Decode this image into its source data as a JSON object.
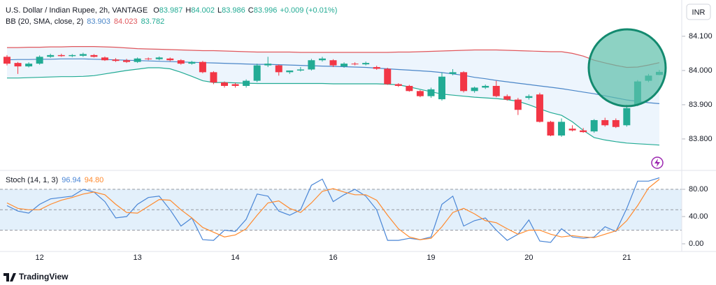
{
  "chart_data": [
    {
      "type": "candlestick",
      "title": "U.S. Dollar / Indian Rupee, 2h, VANTAGE",
      "ohlc": [
        {
          "label": "O",
          "value": "83.987"
        },
        {
          "label": "H",
          "value": "84.002"
        },
        {
          "label": "L",
          "value": "83.986"
        },
        {
          "label": "C",
          "value": "83.996"
        }
      ],
      "change": "+0.009 (+0.01%)",
      "currency": "INR",
      "categories": [
        null,
        null,
        null,
        "12",
        null,
        null,
        null,
        null,
        null,
        null,
        null,
        null,
        "13",
        null,
        null,
        null,
        null,
        null,
        null,
        null,
        null,
        "14",
        null,
        null,
        null,
        null,
        null,
        null,
        null,
        null,
        "16",
        null,
        null,
        null,
        null,
        null,
        null,
        null,
        null,
        "19",
        null,
        null,
        null,
        null,
        null,
        null,
        null,
        null,
        "20",
        null,
        null,
        null,
        null,
        null,
        null,
        null,
        null,
        "21",
        null,
        null,
        null
      ],
      "open": [
        84.04,
        84.022,
        84.012,
        84.02,
        84.04,
        84.045,
        84.042,
        84.043,
        84.045,
        84.038,
        84.032,
        84.03,
        84.025,
        84.035,
        84.033,
        84.035,
        84.03,
        84.02,
        84.025,
        83.995,
        83.965,
        83.96,
        83.955,
        83.97,
        84.015,
        84.015,
        83.995,
        84.0,
        84.003,
        84.03,
        84.03,
        84.012,
        84.02,
        84.018,
        84.01,
        84.005,
        83.96,
        83.955,
        83.94,
        83.925,
        83.916,
        83.99,
        83.995,
        83.94,
        83.95,
        83.955,
        83.925,
        83.915,
        83.92,
        83.93,
        83.85,
        83.81,
        83.83,
        83.825,
        83.822,
        83.855,
        83.855,
        83.84,
        83.9,
        83.97,
        83.987
      ],
      "high": [
        84.045,
        84.025,
        84.024,
        84.044,
        84.049,
        84.049,
        84.048,
        84.052,
        84.048,
        84.041,
        84.036,
        84.034,
        84.038,
        84.038,
        84.041,
        84.038,
        84.033,
        84.028,
        84.028,
        83.998,
        83.968,
        83.964,
        83.974,
        84.02,
        84.04,
        84.018,
        84.0,
        84.01,
        84.034,
        84.04,
        84.033,
        84.024,
        84.024,
        84.026,
        84.014,
        84.008,
        83.963,
        83.958,
        83.943,
        83.95,
        83.994,
        84.004,
        83.998,
        83.953,
        83.959,
        83.97,
        83.93,
        83.92,
        83.93,
        83.935,
        83.853,
        83.86,
        83.84,
        83.832,
        83.858,
        83.862,
        83.86,
        83.9,
        83.972,
        83.99,
        84.002
      ],
      "low": [
        84.015,
        83.99,
        84.009,
        84.017,
        84.037,
        84.04,
        84.039,
        84.04,
        84.038,
        84.028,
        84.025,
        84.022,
        84.022,
        84.03,
        84.03,
        84.027,
        84.017,
        84.017,
        83.992,
        83.96,
        83.95,
        83.95,
        83.95,
        83.966,
        84.01,
        83.985,
        83.99,
        83.997,
        84.0,
        84.026,
        84.01,
        84.008,
        84.015,
        84.015,
        84.002,
        83.958,
        83.952,
        83.938,
        83.922,
        83.92,
        83.912,
        83.986,
        83.936,
        83.935,
        83.946,
        83.922,
        83.912,
        83.87,
        83.915,
        83.848,
        83.808,
        83.806,
        83.822,
        83.818,
        83.818,
        83.836,
        83.832,
        83.836,
        83.896,
        83.966,
        83.986
      ],
      "close": [
        84.02,
        84.012,
        84.02,
        84.04,
        84.045,
        84.042,
        84.045,
        84.048,
        84.04,
        84.03,
        84.028,
        84.025,
        84.035,
        84.033,
        84.038,
        84.03,
        84.02,
        84.025,
        83.995,
        83.965,
        83.955,
        83.955,
        83.97,
        84.015,
        84.02,
        83.995,
        84.0,
        84.003,
        84.03,
        84.035,
        84.015,
        84.02,
        84.018,
        84.022,
        84.005,
        83.96,
        83.955,
        83.94,
        83.925,
        83.945,
        83.982,
        83.995,
        83.94,
        83.95,
        83.955,
        83.925,
        83.915,
        83.885,
        83.925,
        83.85,
        83.81,
        83.85,
        83.825,
        83.82,
        83.855,
        83.84,
        83.835,
        83.89,
        83.968,
        83.985,
        83.996
      ],
      "up_color": "#22ab94",
      "down_color": "#f23645",
      "ylim": [
        83.71,
        84.206
      ],
      "yticks": [
        {
          "value": 84.1,
          "label": "84.100"
        },
        {
          "value": 84.0,
          "label": "84.000"
        },
        {
          "value": 83.9,
          "label": "83.900"
        },
        {
          "value": 83.8,
          "label": "83.800"
        }
      ],
      "bb": {
        "title": "BB (20, SMA, close, 2)",
        "fill": "#e8f2fc",
        "series": [
          {
            "color": "#4a86c8",
            "legend_value": "83.903",
            "values": [
              84.031,
              84.032,
              84.032,
              84.033,
              84.033,
              84.034,
              84.034,
              84.034,
              84.033,
              84.032,
              84.031,
              84.03,
              84.029,
              84.028,
              84.027,
              84.026,
              84.025,
              84.024,
              84.023,
              84.022,
              84.021,
              84.02,
              84.019,
              84.018,
              84.018,
              84.017,
              84.016,
              84.015,
              84.014,
              84.013,
              84.012,
              84.011,
              84.01,
              84.009,
              84.007,
              84.005,
              84.003,
              84.001,
              83.999,
              83.997,
              83.994,
              83.99,
              83.986,
              83.98,
              83.976,
              83.971,
              83.967,
              83.963,
              83.959,
              83.955,
              83.951,
              83.947,
              83.942,
              83.937,
              83.932,
              83.926,
              83.92,
              83.914,
              83.91,
              83.906,
              83.903
            ]
          },
          {
            "color": "#e0575c",
            "legend_value": "84.023",
            "values": [
              84.067,
              84.067,
              84.068,
              84.068,
              84.069,
              84.069,
              84.07,
              84.07,
              84.07,
              84.069,
              84.068,
              84.066,
              84.064,
              84.063,
              84.062,
              84.061,
              84.06,
              84.059,
              84.058,
              84.058,
              84.057,
              84.056,
              84.055,
              84.054,
              84.054,
              84.054,
              84.054,
              84.053,
              84.053,
              84.053,
              84.053,
              84.053,
              84.053,
              84.053,
              84.053,
              84.053,
              84.054,
              84.054,
              84.055,
              84.056,
              84.057,
              84.058,
              84.059,
              84.06,
              84.06,
              84.06,
              84.059,
              84.058,
              84.057,
              84.056,
              84.055,
              84.055,
              84.05,
              84.042,
              84.03,
              84.022,
              84.015,
              84.009,
              84.01,
              84.016,
              84.023
            ]
          },
          {
            "color": "#22ab94",
            "legend_value": "83.782",
            "values": [
              83.978,
              83.978,
              83.979,
              83.98,
              83.981,
              83.982,
              83.982,
              83.983,
              83.985,
              83.99,
              83.995,
              84.0,
              84.004,
              84.008,
              84.008,
              84.005,
              83.995,
              83.983,
              83.97,
              83.965,
              83.965,
              83.964,
              83.963,
              83.962,
              83.962,
              83.962,
              83.962,
              83.962,
              83.962,
              83.962,
              83.961,
              83.961,
              83.961,
              83.961,
              83.961,
              83.96,
              83.958,
              83.952,
              83.945,
              83.938,
              83.931,
              83.928,
              83.925,
              83.922,
              83.92,
              83.918,
              83.915,
              83.91,
              83.9,
              83.888,
              83.877,
              83.869,
              83.85,
              83.825,
              83.804,
              83.797,
              83.792,
              83.788,
              83.786,
              83.784,
              83.782
            ]
          }
        ]
      }
    },
    {
      "type": "line",
      "title": "Stoch (14, 1, 3)",
      "ylim": [
        -11.3,
        106.7
      ],
      "yticks": [
        {
          "value": 80,
          "label": "80.00"
        },
        {
          "value": 40,
          "label": "40.00"
        },
        {
          "value": 0,
          "label": "0.00"
        }
      ],
      "levels": [
        80,
        50,
        20
      ],
      "band_color": "#e3f0fb",
      "series": [
        {
          "color": "#4a86d6",
          "legend_value": "96.94",
          "values": [
            56,
            48,
            45,
            58,
            66,
            68,
            70,
            80,
            76,
            62,
            38,
            40,
            58,
            68,
            70,
            50,
            26,
            38,
            6,
            5,
            20,
            18,
            36,
            73,
            70,
            48,
            42,
            50,
            86,
            95,
            62,
            72,
            80,
            70,
            50,
            5,
            5,
            8,
            6,
            10,
            58,
            70,
            26,
            34,
            38,
            20,
            5,
            14,
            35,
            4,
            2,
            22,
            10,
            8,
            10,
            25,
            18,
            52,
            92,
            92,
            96.94
          ]
        },
        {
          "color": "#ff8a2e",
          "legend_value": "94.80",
          "values": [
            60,
            52,
            50,
            50,
            58,
            64,
            68,
            73,
            76,
            72,
            58,
            46,
            45,
            55,
            65,
            64,
            50,
            38,
            24,
            17,
            10,
            13,
            22,
            42,
            60,
            63,
            52,
            46,
            60,
            77,
            81,
            76,
            72,
            72,
            64,
            42,
            22,
            10,
            6,
            8,
            25,
            46,
            52,
            44,
            34,
            31,
            22,
            14,
            20,
            20,
            14,
            10,
            12,
            10,
            9,
            14,
            19,
            34,
            56,
            82,
            94.8
          ]
        }
      ]
    }
  ],
  "branding": "TradingView"
}
